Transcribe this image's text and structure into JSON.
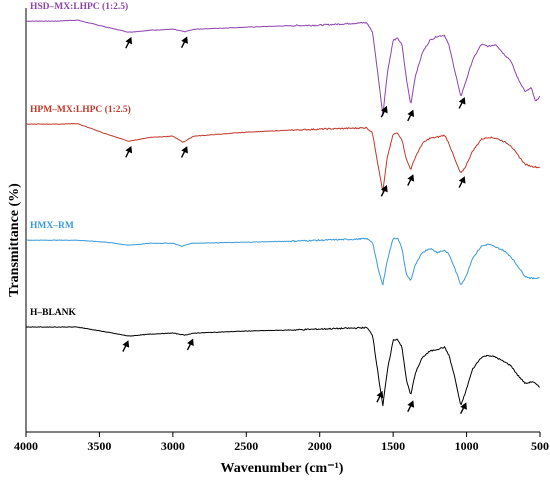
{
  "chart_data": {
    "type": "line",
    "title": "",
    "xlabel": "Wavenumber (cm⁻¹)",
    "ylabel": "Transmittance (%)",
    "xlim": [
      4000,
      500
    ],
    "x_reversed": true,
    "x_ticks": [
      4000,
      3500,
      3000,
      2500,
      2000,
      1500,
      1000,
      500
    ],
    "grid": false,
    "legend": "none",
    "series": [
      {
        "name": "HSD–MX:LHPC (1:2.5)",
        "color": "#8e44ad",
        "baseline_offset": 300,
        "points": [
          [
            4000,
            97
          ],
          [
            3800,
            97
          ],
          [
            3650,
            98
          ],
          [
            3450,
            91
          ],
          [
            3300,
            86
          ],
          [
            3150,
            88
          ],
          [
            3000,
            89
          ],
          [
            2920,
            86.5
          ],
          [
            2850,
            89
          ],
          [
            2500,
            91
          ],
          [
            2200,
            92.5
          ],
          [
            2000,
            93
          ],
          [
            1750,
            95
          ],
          [
            1680,
            95.5
          ],
          [
            1640,
            86
          ],
          [
            1600,
            40
          ],
          [
            1570,
            4
          ],
          [
            1540,
            45
          ],
          [
            1500,
            78
          ],
          [
            1470,
            80
          ],
          [
            1440,
            74
          ],
          [
            1410,
            40
          ],
          [
            1380,
            14
          ],
          [
            1350,
            42
          ],
          [
            1300,
            66
          ],
          [
            1250,
            78
          ],
          [
            1200,
            82
          ],
          [
            1150,
            83
          ],
          [
            1120,
            73
          ],
          [
            1080,
            48
          ],
          [
            1040,
            22
          ],
          [
            1010,
            35
          ],
          [
            960,
            58
          ],
          [
            900,
            74
          ],
          [
            850,
            72
          ],
          [
            800,
            74
          ],
          [
            750,
            65
          ],
          [
            700,
            58
          ],
          [
            650,
            40
          ],
          [
            600,
            27
          ],
          [
            560,
            31
          ],
          [
            530,
            17
          ],
          [
            500,
            23
          ]
        ],
        "arrows": [
          3300,
          2920,
          1560,
          1380,
          1030
        ]
      },
      {
        "name": "HPM–MX:LHPC (1:2.5)",
        "color": "#c0392b",
        "baseline_offset": 200,
        "points": [
          [
            4000,
            95
          ],
          [
            3800,
            95
          ],
          [
            3650,
            95.5
          ],
          [
            3450,
            85
          ],
          [
            3300,
            78
          ],
          [
            3150,
            82
          ],
          [
            3000,
            83
          ],
          [
            2930,
            77
          ],
          [
            2860,
            83
          ],
          [
            2500,
            87
          ],
          [
            2200,
            89
          ],
          [
            2000,
            90
          ],
          [
            1750,
            91
          ],
          [
            1680,
            91.5
          ],
          [
            1640,
            86
          ],
          [
            1600,
            52
          ],
          [
            1570,
            28
          ],
          [
            1540,
            62
          ],
          [
            1500,
            85
          ],
          [
            1470,
            86
          ],
          [
            1440,
            80
          ],
          [
            1410,
            60
          ],
          [
            1380,
            50
          ],
          [
            1350,
            62
          ],
          [
            1300,
            76
          ],
          [
            1250,
            81
          ],
          [
            1200,
            82
          ],
          [
            1150,
            84
          ],
          [
            1120,
            76
          ],
          [
            1080,
            60
          ],
          [
            1040,
            46
          ],
          [
            1010,
            52
          ],
          [
            960,
            68
          ],
          [
            900,
            80
          ],
          [
            850,
            82
          ],
          [
            800,
            81
          ],
          [
            750,
            78
          ],
          [
            700,
            74
          ],
          [
            650,
            64
          ],
          [
            600,
            55
          ],
          [
            550,
            53
          ],
          [
            500,
            52
          ]
        ],
        "arrows": [
          3300,
          2920,
          1560,
          1380,
          1030
        ]
      },
      {
        "name": "HMX–RM",
        "color": "#3a9ad9",
        "baseline_offset": 100,
        "points": [
          [
            4000,
            80
          ],
          [
            3800,
            80
          ],
          [
            3650,
            80
          ],
          [
            3450,
            78
          ],
          [
            3300,
            75
          ],
          [
            3150,
            77
          ],
          [
            3000,
            77
          ],
          [
            2940,
            74
          ],
          [
            2870,
            77
          ],
          [
            2500,
            78
          ],
          [
            2200,
            79
          ],
          [
            2000,
            80
          ],
          [
            1750,
            81
          ],
          [
            1680,
            81.5
          ],
          [
            1640,
            78
          ],
          [
            1600,
            50
          ],
          [
            1570,
            36
          ],
          [
            1540,
            60
          ],
          [
            1500,
            82
          ],
          [
            1470,
            82
          ],
          [
            1440,
            72
          ],
          [
            1410,
            46
          ],
          [
            1380,
            40
          ],
          [
            1350,
            55
          ],
          [
            1300,
            68
          ],
          [
            1250,
            72
          ],
          [
            1200,
            68
          ],
          [
            1150,
            70
          ],
          [
            1120,
            66
          ],
          [
            1080,
            52
          ],
          [
            1040,
            36
          ],
          [
            1010,
            42
          ],
          [
            960,
            62
          ],
          [
            900,
            74
          ],
          [
            850,
            76
          ],
          [
            800,
            73
          ],
          [
            750,
            70
          ],
          [
            700,
            64
          ],
          [
            650,
            54
          ],
          [
            600,
            44
          ],
          [
            550,
            42
          ],
          [
            500,
            43
          ]
        ],
        "arrows": []
      },
      {
        "name": "H–BLANK",
        "color": "#000000",
        "baseline_offset": 0,
        "points": [
          [
            4000,
            94
          ],
          [
            3800,
            94
          ],
          [
            3650,
            94
          ],
          [
            3450,
            89
          ],
          [
            3300,
            85
          ],
          [
            3150,
            87
          ],
          [
            3000,
            88
          ],
          [
            2920,
            86
          ],
          [
            2850,
            88
          ],
          [
            2500,
            90
          ],
          [
            2200,
            91
          ],
          [
            2000,
            92
          ],
          [
            1750,
            93
          ],
          [
            1680,
            93.5
          ],
          [
            1640,
            86
          ],
          [
            1600,
            45
          ],
          [
            1570,
            16
          ],
          [
            1540,
            50
          ],
          [
            1500,
            81
          ],
          [
            1470,
            82
          ],
          [
            1440,
            74
          ],
          [
            1410,
            42
          ],
          [
            1380,
            26
          ],
          [
            1350,
            48
          ],
          [
            1300,
            64
          ],
          [
            1250,
            70
          ],
          [
            1200,
            72
          ],
          [
            1150,
            74
          ],
          [
            1120,
            66
          ],
          [
            1080,
            44
          ],
          [
            1040,
            16
          ],
          [
            1010,
            28
          ],
          [
            960,
            52
          ],
          [
            900,
            64
          ],
          [
            850,
            66
          ],
          [
            800,
            64
          ],
          [
            750,
            60
          ],
          [
            700,
            56
          ],
          [
            650,
            46
          ],
          [
            600,
            38
          ],
          [
            550,
            40
          ],
          [
            500,
            34
          ]
        ],
        "arrows": [
          3320,
          2880,
          1590,
          1380,
          1020
        ]
      }
    ]
  }
}
